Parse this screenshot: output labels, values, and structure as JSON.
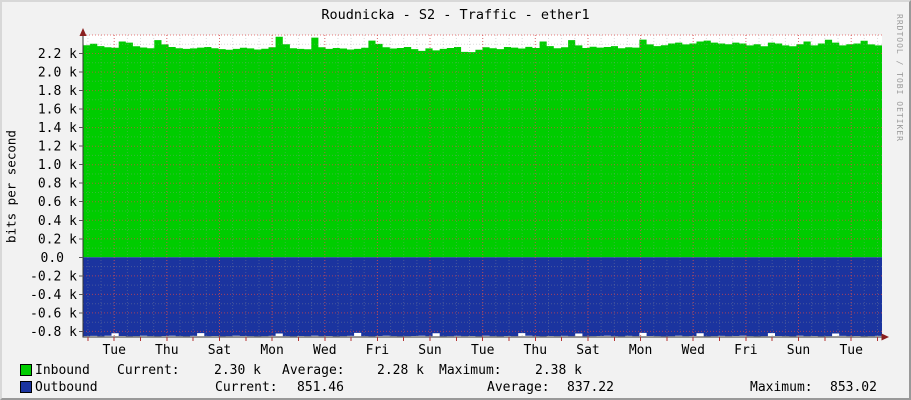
{
  "title": "Roudnicka - S2 - Traffic - ether1",
  "ylabel": "bits per second",
  "watermark": "RRDTOOL / TOBI OETIKER",
  "colors": {
    "background": "#f2f2f2",
    "canvas": "#ffffff",
    "inbound": "#00cc00",
    "outbound": "#1b349f",
    "major_grid": "#dd4444",
    "minor_grid": "#999999",
    "axis": "#333333",
    "arrow": "#8a1f1f",
    "x_tick": "#b23333",
    "watermark_text": "#9b9b9b"
  },
  "chart_data": {
    "type": "area",
    "title": "Roudnicka - S2 - Traffic - ether1",
    "xlabel": "",
    "ylabel": "bits per second",
    "ylim": [
      -860,
      2400
    ],
    "grid": true,
    "legend_position": "bottom",
    "y_tick_labels": [
      "2.2 k",
      "2.0 k",
      "1.8 k",
      "1.6 k",
      "1.4 k",
      "1.2 k",
      "1.0 k",
      "0.8 k",
      "0.6 k",
      "0.4 k",
      "0.2 k",
      "0.0",
      "-0.2 k",
      "-0.4 k",
      "-0.6 k",
      "-0.8 k"
    ],
    "y_tick_values": [
      2200,
      2000,
      1800,
      1600,
      1400,
      1200,
      1000,
      800,
      600,
      400,
      200,
      0,
      -200,
      -400,
      -600,
      -800
    ],
    "x_tick_labels": [
      "Tue",
      "Thu",
      "Sat",
      "Mon",
      "Wed",
      "Fri",
      "Sun",
      "Tue",
      "Thu",
      "Sat",
      "Mon",
      "Wed",
      "Fri",
      "Sun",
      "Tue"
    ],
    "series": [
      {
        "name": "Inbound",
        "direction": "up",
        "values": [
          2290,
          2305,
          2280,
          2268,
          2262,
          2330,
          2318,
          2278,
          2265,
          2258,
          2345,
          2298,
          2270,
          2258,
          2250,
          2255,
          2264,
          2270,
          2258,
          2248,
          2240,
          2250,
          2262,
          2255,
          2244,
          2252,
          2268,
          2382,
          2300,
          2258,
          2250,
          2246,
          2372,
          2268,
          2250,
          2260,
          2254,
          2244,
          2250,
          2262,
          2340,
          2304,
          2268,
          2254,
          2260,
          2270,
          2248,
          2228,
          2255,
          2234,
          2250,
          2260,
          2270,
          2218,
          2215,
          2240,
          2268,
          2258,
          2248,
          2270,
          2264,
          2254,
          2272,
          2260,
          2330,
          2280,
          2258,
          2268,
          2345,
          2288,
          2260,
          2274,
          2264,
          2270,
          2280,
          2258,
          2268,
          2264,
          2350,
          2298,
          2280,
          2290,
          2308,
          2318,
          2298,
          2308,
          2330,
          2340,
          2318,
          2308,
          2300,
          2318,
          2308,
          2288,
          2300,
          2278,
          2318,
          2308,
          2288,
          2278,
          2300,
          2330,
          2288,
          2308,
          2348,
          2318,
          2288,
          2300,
          2308,
          2338,
          2298,
          2288
        ]
      },
      {
        "name": "Outbound",
        "direction": "down",
        "values": [
          850,
          848,
          851,
          846,
          820,
          849,
          851,
          850,
          847,
          850,
          852,
          849,
          846,
          850,
          851,
          848,
          818,
          850,
          849,
          851,
          850,
          847,
          849,
          850,
          852,
          850,
          848,
          822,
          850,
          851,
          849,
          850,
          846,
          850,
          849,
          851,
          850,
          848,
          816,
          850,
          851,
          849,
          847,
          850,
          852,
          850,
          849,
          846,
          850,
          820,
          851,
          850,
          848,
          850,
          849,
          851,
          846,
          850,
          852,
          849,
          850,
          818,
          847,
          850,
          851,
          849,
          850,
          848,
          850,
          822,
          851,
          850,
          849,
          846,
          850,
          851,
          848,
          850,
          816,
          849,
          850,
          852,
          850,
          847,
          850,
          849,
          820,
          851,
          850,
          848,
          850,
          849,
          846,
          850,
          851,
          850,
          818,
          849,
          850,
          852,
          847,
          850,
          849,
          851,
          850,
          822,
          848,
          850,
          849,
          851,
          850,
          848
        ]
      }
    ]
  },
  "legend": {
    "rows": [
      {
        "name": "Inbound",
        "items": [
          {
            "label": "Current:",
            "value": "2.30 k"
          },
          {
            "label": "Average:",
            "value": "2.28 k"
          },
          {
            "label": "Maximum:",
            "value": "2.38 k"
          }
        ]
      },
      {
        "name": "Outbound",
        "items": [
          {
            "label": "Current:",
            "value": "851.46"
          },
          {
            "label": "Average:",
            "value": "837.22"
          },
          {
            "label": "Maximum:",
            "value": "853.02"
          }
        ]
      }
    ]
  }
}
